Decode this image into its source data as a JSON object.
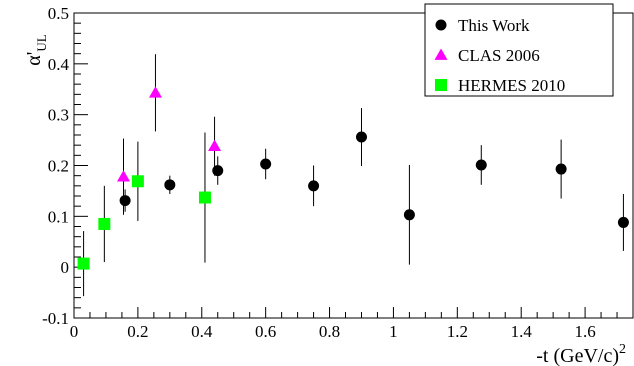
{
  "chart_data": {
    "type": "scatter",
    "ylabel": "α'",
    "ylabel_subscript": "UL",
    "xlabel": "-t (GeV/c)",
    "xlabel_superscript": "2",
    "xlim": [
      0,
      1.75
    ],
    "ylim": [
      -0.1,
      0.5
    ],
    "x_ticks": [
      0,
      0.2,
      0.4,
      0.6,
      0.8,
      1,
      1.2,
      1.4,
      1.6
    ],
    "x_tick_labels": [
      "0",
      "0.2",
      "0.4",
      "0.6",
      "0.8",
      "1",
      "1.2",
      "1.4",
      "1.6"
    ],
    "y_ticks": [
      -0.1,
      0,
      0.1,
      0.2,
      0.3,
      0.4,
      0.5
    ],
    "y_tick_labels": [
      "-0.1",
      "0",
      "0.1",
      "0.2",
      "0.3",
      "0.4",
      "0.5"
    ],
    "grid": false,
    "legend_position": "top-right",
    "series": [
      {
        "name": "This Work",
        "marker": "circle",
        "color": "#000000",
        "points": [
          {
            "x": 0.16,
            "y": 0.131,
            "err": 0.022
          },
          {
            "x": 0.3,
            "y": 0.162,
            "err": 0.018
          },
          {
            "x": 0.45,
            "y": 0.19,
            "err": 0.028
          },
          {
            "x": 0.6,
            "y": 0.203,
            "err": 0.03
          },
          {
            "x": 0.75,
            "y": 0.16,
            "err": 0.04
          },
          {
            "x": 0.9,
            "y": 0.256,
            "err": 0.057
          },
          {
            "x": 1.05,
            "y": 0.103,
            "err": 0.098
          },
          {
            "x": 1.275,
            "y": 0.201,
            "err": 0.039
          },
          {
            "x": 1.525,
            "y": 0.193,
            "err": 0.058
          },
          {
            "x": 1.72,
            "y": 0.088,
            "err": 0.056
          }
        ]
      },
      {
        "name": "CLAS 2006",
        "marker": "triangle",
        "color": "#ff00ff",
        "points": [
          {
            "x": 0.155,
            "y": 0.178,
            "err": 0.075
          },
          {
            "x": 0.255,
            "y": 0.343,
            "err": 0.076
          },
          {
            "x": 0.44,
            "y": 0.238,
            "err": 0.058
          }
        ]
      },
      {
        "name": "HERMES 2010",
        "marker": "square",
        "color": "#00ff00",
        "points": [
          {
            "x": 0.03,
            "y": 0.007,
            "err": 0.064
          },
          {
            "x": 0.095,
            "y": 0.085,
            "err": 0.075
          },
          {
            "x": 0.2,
            "y": 0.169,
            "err": 0.078
          },
          {
            "x": 0.41,
            "y": 0.137,
            "err": 0.128
          }
        ]
      }
    ]
  }
}
